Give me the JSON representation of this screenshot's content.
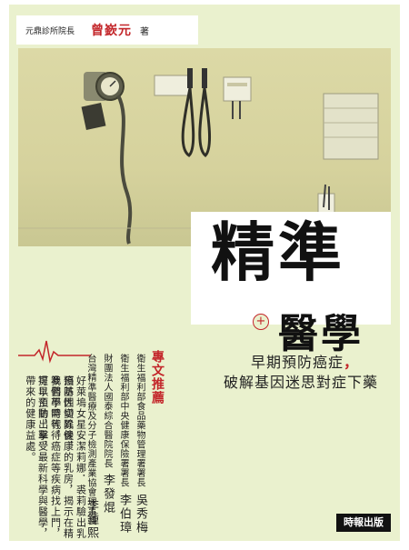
{
  "author": {
    "role": "元鼎診所院長",
    "name": "曾嶔元",
    "suffix": "著"
  },
  "title": {
    "line1": "精準",
    "plus": "+",
    "line2": "醫學"
  },
  "subtitle": {
    "line1": "早期預防癌症",
    "comma": "，",
    "line2": "破解基因迷思對症下藥"
  },
  "recommend": {
    "heading": "專文推薦",
    "endorsers": [
      {
        "role": "衛生福利部食品藥物管理署署長",
        "name": "吳秀梅"
      },
      {
        "role": "衛生福利部中央健康保險署署長",
        "name": "李伯璋"
      },
      {
        "role": "財團法人國泰綜合醫院院長",
        "name": "李發焜"
      },
      {
        "role": "台灣精準醫療及分子檢測產業協會理事長",
        "name": "李鍾熙"
      }
    ]
  },
  "blurb": [
    "好萊塢女星安潔莉娜．裘莉驗出乳癌基因變異後，",
    "預防性切除健康的乳房，揭示在精準醫學時代，",
    "我們不需等待癌症等疾病找上門，可以主動出擊，",
    "提早預防，享受最新科學與醫學，帶來的健康益處。"
  ],
  "publisher": "時報出版"
}
